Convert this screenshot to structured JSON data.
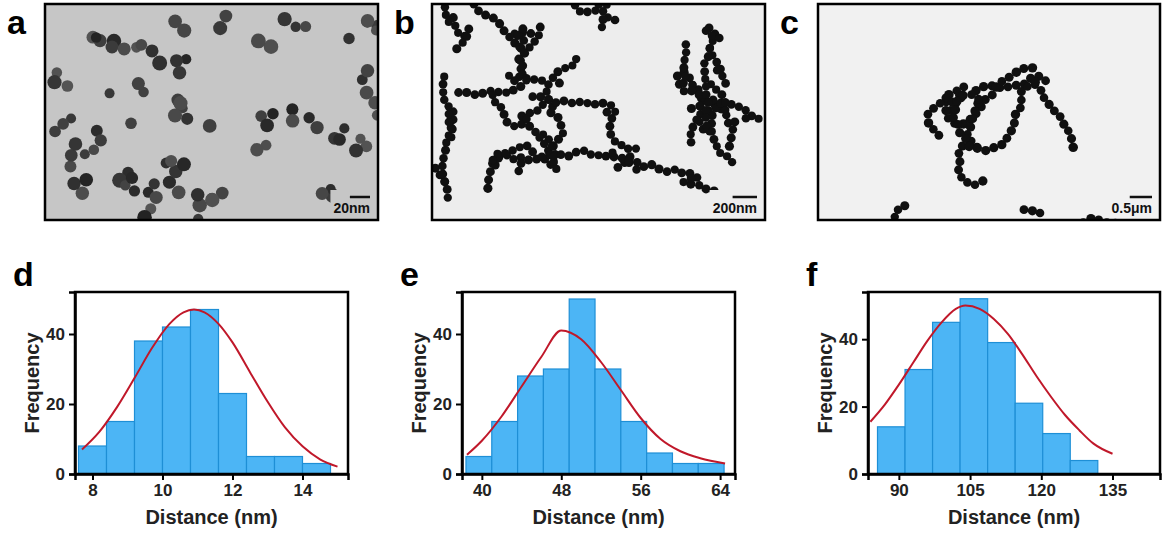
{
  "images": [
    {
      "panel": "a",
      "scale_bar": "20nm"
    },
    {
      "panel": "b",
      "scale_bar": "200nm"
    },
    {
      "panel": "c",
      "scale_bar": "0.5μm"
    }
  ],
  "chart_data": [
    {
      "type": "histogram",
      "panel": "d",
      "x_label": "Distance (nm)",
      "y_label": "Frequency",
      "bins": [
        7.6,
        8.4,
        9.2,
        10.0,
        10.8,
        11.6,
        12.4,
        13.2,
        14.0,
        14.8
      ],
      "counts": [
        8,
        15,
        38,
        42,
        47,
        23,
        5,
        5,
        3
      ],
      "color": "#4cb5f5",
      "fit": {
        "x": [
          7.7,
          8.2,
          8.7,
          9.2,
          9.7,
          10.2,
          10.6,
          10.9,
          11.2,
          11.6,
          12.0,
          12.5,
          13.0,
          13.5,
          14.0,
          14.5,
          15.0
        ],
        "y": [
          7.0,
          12.1,
          19.1,
          27.4,
          36.0,
          42.9,
          46.2,
          47.0,
          46.2,
          42.9,
          37.6,
          29.1,
          20.7,
          13.3,
          7.9,
          4.2,
          2.1
        ],
        "color": "#c0182a"
      },
      "xlim": [
        7.5,
        15.3
      ],
      "xticks": [
        8,
        10,
        12,
        14
      ],
      "ylim": [
        0,
        52
      ],
      "yticks": [
        0,
        20,
        40
      ],
      "grid": false
    },
    {
      "type": "histogram",
      "panel": "e",
      "x_label": "Distance (nm)",
      "y_label": "Frequency",
      "bins": [
        38.4,
        41.0,
        43.6,
        46.2,
        48.8,
        51.4,
        54.0,
        56.6,
        59.2,
        61.8,
        64.4
      ],
      "counts": [
        5,
        15,
        28,
        30,
        50,
        30,
        15,
        6,
        3,
        3
      ],
      "color": "#4cb5f5",
      "fit": {
        "x": [
          38.5,
          40,
          42,
          44,
          46,
          48,
          50,
          52,
          54,
          56,
          58,
          60,
          62,
          64.5
        ],
        "y": [
          5.5,
          9.5,
          16.5,
          25,
          33.5,
          41,
          38.5,
          32,
          24,
          16,
          10,
          6.5,
          4.5,
          3
        ],
        "color": "#c0182a"
      },
      "xlim": [
        38,
        65.5
      ],
      "xticks": [
        40,
        48,
        56,
        64
      ],
      "ylim": [
        0,
        52
      ],
      "yticks": [
        0,
        20,
        40
      ],
      "grid": false
    },
    {
      "type": "histogram",
      "panel": "f",
      "x_label": "Distance (nm)",
      "y_label": "Frequency",
      "bins": [
        85.5,
        91.3,
        97.1,
        102.9,
        108.7,
        114.5,
        120.3,
        126.1,
        131.9
      ],
      "counts": [
        14,
        31,
        45,
        52,
        39,
        21,
        12,
        4
      ],
      "color": "#4cb5f5",
      "fit": {
        "x": [
          84,
          87,
          90,
          93,
          96,
          99,
          102,
          104,
          107,
          110,
          113,
          116,
          119,
          122,
          125,
          128,
          131,
          135
        ],
        "y": [
          15.5,
          20.5,
          26.5,
          33,
          39.5,
          45,
          49,
          50,
          49,
          46,
          41.5,
          35.5,
          29,
          23,
          17.5,
          13,
          9,
          6
        ],
        "color": "#c0182a"
      },
      "xlim": [
        83.5,
        145
      ],
      "xticks": [
        90,
        105,
        120,
        135
      ],
      "ylim": [
        0,
        54
      ],
      "yticks": [
        0,
        20,
        40
      ],
      "grid": false
    }
  ]
}
